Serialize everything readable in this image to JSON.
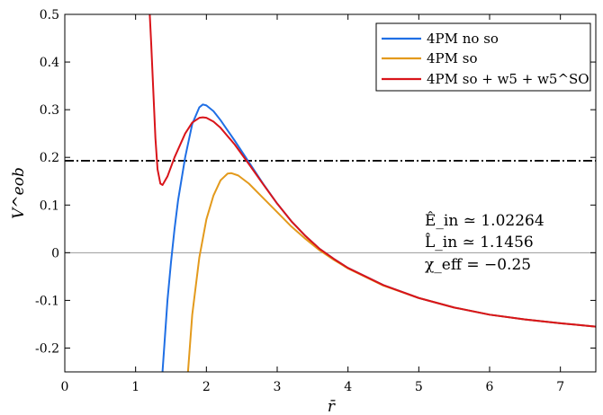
{
  "chart_data": {
    "type": "line",
    "xlabel": "r̄",
    "ylabel": "V^eob",
    "xlim": [
      0,
      7.5
    ],
    "ylim": [
      -0.25,
      0.5
    ],
    "xticks": [
      0,
      1,
      2,
      3,
      4,
      5,
      6,
      7
    ],
    "xtick_labels": [
      "0",
      "1",
      "2",
      "3",
      "4",
      "5",
      "6",
      "7"
    ],
    "yticks": [
      -0.2,
      -0.1,
      0,
      0.1,
      0.2,
      0.3,
      0.4,
      0.5
    ],
    "ytick_labels": [
      "-0.2",
      "-0.1",
      "0",
      "0.1",
      "0.2",
      "0.3",
      "0.4",
      "0.5"
    ],
    "grid": false,
    "legend_position": "top-right",
    "series": [
      {
        "name": "4PM no so",
        "color": "#1f6fe5",
        "points": [
          [
            1.38,
            -0.25
          ],
          [
            1.45,
            -0.1
          ],
          [
            1.5,
            -0.02
          ],
          [
            1.55,
            0.05
          ],
          [
            1.6,
            0.11
          ],
          [
            1.7,
            0.2
          ],
          [
            1.8,
            0.27
          ],
          [
            1.9,
            0.305
          ],
          [
            1.95,
            0.311
          ],
          [
            2.0,
            0.309
          ],
          [
            2.1,
            0.297
          ],
          [
            2.2,
            0.278
          ],
          [
            2.4,
            0.235
          ],
          [
            2.6,
            0.19
          ],
          [
            2.8,
            0.145
          ],
          [
            3.0,
            0.103
          ],
          [
            3.2,
            0.066
          ],
          [
            3.4,
            0.035
          ],
          [
            3.6,
            0.008
          ],
          [
            3.8,
            -0.013
          ],
          [
            4.0,
            -0.032
          ],
          [
            4.5,
            -0.068
          ],
          [
            5.0,
            -0.095
          ],
          [
            5.5,
            -0.115
          ],
          [
            6.0,
            -0.13
          ],
          [
            6.5,
            -0.14
          ],
          [
            7.0,
            -0.148
          ],
          [
            7.5,
            -0.155
          ]
        ]
      },
      {
        "name": "4PM so",
        "color": "#e39a1c",
        "points": [
          [
            1.74,
            -0.25
          ],
          [
            1.8,
            -0.13
          ],
          [
            1.9,
            -0.01
          ],
          [
            2.0,
            0.07
          ],
          [
            2.1,
            0.12
          ],
          [
            2.2,
            0.152
          ],
          [
            2.3,
            0.166
          ],
          [
            2.35,
            0.167
          ],
          [
            2.45,
            0.162
          ],
          [
            2.6,
            0.145
          ],
          [
            2.8,
            0.115
          ],
          [
            3.0,
            0.085
          ],
          [
            3.2,
            0.055
          ],
          [
            3.4,
            0.029
          ],
          [
            3.6,
            0.005
          ],
          [
            3.8,
            -0.015
          ],
          [
            4.0,
            -0.033
          ],
          [
            4.5,
            -0.069
          ],
          [
            5.0,
            -0.095
          ],
          [
            5.5,
            -0.115
          ],
          [
            6.0,
            -0.13
          ],
          [
            6.5,
            -0.14
          ],
          [
            7.0,
            -0.148
          ],
          [
            7.5,
            -0.155
          ]
        ]
      },
      {
        "name": "4PM so + w5 + w5^SO",
        "color": "#d9141a",
        "points": [
          [
            1.2,
            0.5
          ],
          [
            1.22,
            0.44
          ],
          [
            1.25,
            0.34
          ],
          [
            1.28,
            0.24
          ],
          [
            1.31,
            0.175
          ],
          [
            1.35,
            0.145
          ],
          [
            1.38,
            0.142
          ],
          [
            1.45,
            0.16
          ],
          [
            1.55,
            0.2
          ],
          [
            1.7,
            0.25
          ],
          [
            1.8,
            0.273
          ],
          [
            1.9,
            0.283
          ],
          [
            1.95,
            0.284
          ],
          [
            2.0,
            0.283
          ],
          [
            2.1,
            0.275
          ],
          [
            2.2,
            0.262
          ],
          [
            2.4,
            0.227
          ],
          [
            2.6,
            0.186
          ],
          [
            2.8,
            0.144
          ],
          [
            3.0,
            0.103
          ],
          [
            3.2,
            0.066
          ],
          [
            3.4,
            0.035
          ],
          [
            3.6,
            0.008
          ],
          [
            3.8,
            -0.013
          ],
          [
            4.0,
            -0.032
          ],
          [
            4.5,
            -0.068
          ],
          [
            5.0,
            -0.095
          ],
          [
            5.5,
            -0.115
          ],
          [
            6.0,
            -0.13
          ],
          [
            6.5,
            -0.14
          ],
          [
            7.0,
            -0.148
          ],
          [
            7.5,
            -0.155
          ]
        ]
      }
    ],
    "reference_lines": [
      {
        "y": 0.193,
        "style": "dash-dot",
        "color": "#000000"
      },
      {
        "y": 0,
        "style": "solid",
        "color": "#999999"
      }
    ],
    "annotations": {
      "E_in": "Ê_in ≃ 1.02264",
      "L_in": "L̂_in ≃ 1.1456",
      "chi": "χ_eff = −0.25"
    }
  }
}
